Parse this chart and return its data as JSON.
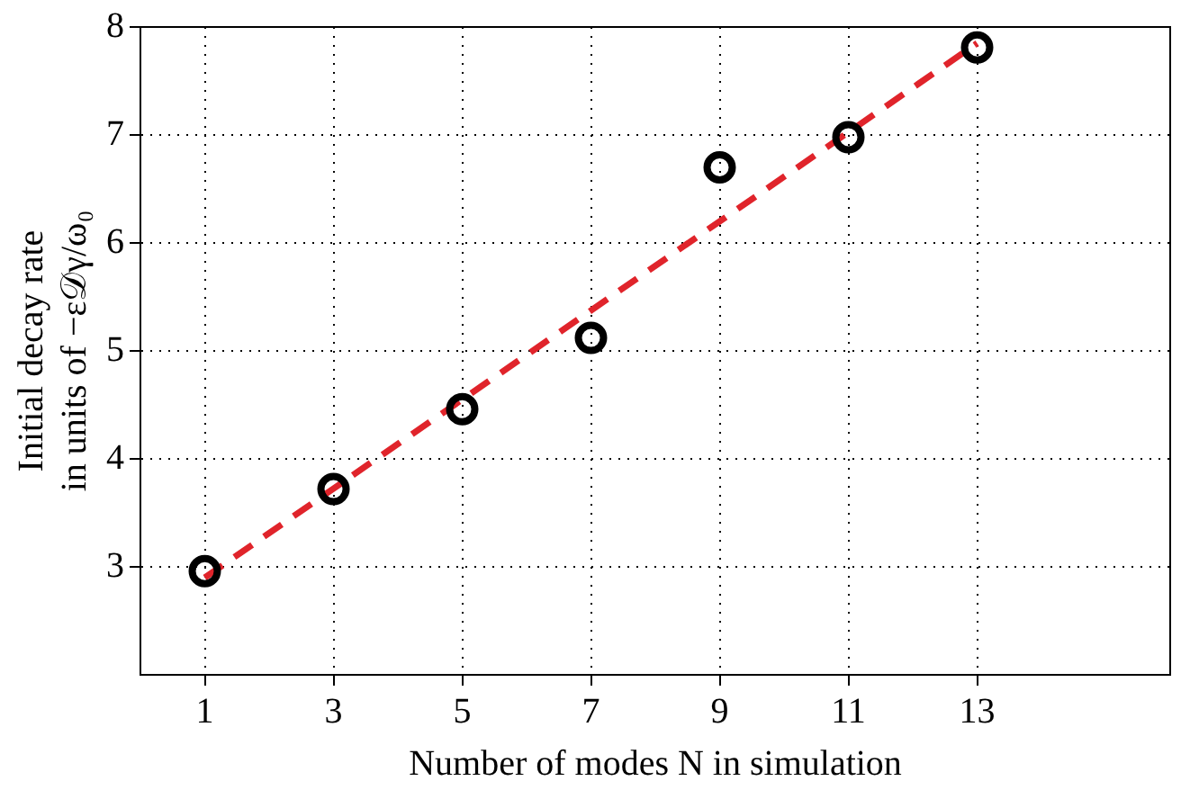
{
  "chart_data": {
    "type": "scatter",
    "xlabel": "Number of modes N in simulation",
    "ylabel": "Initial decay rate\nin units of −ε𝒟γ/ω₀",
    "xlim": [
      0,
      16
    ],
    "xticks": [
      1,
      3,
      5,
      7,
      9,
      11,
      13
    ],
    "ylim": [
      2,
      8
    ],
    "yticks": [
      3,
      4,
      5,
      6,
      7,
      8
    ],
    "grid": true,
    "marker": "circle",
    "series": [
      {
        "type": "scatter",
        "color": "#000000",
        "x": [
          1,
          3,
          5,
          7,
          9,
          11,
          13
        ],
        "values": [
          2.96,
          3.72,
          4.46,
          5.12,
          6.7,
          6.98,
          7.81
        ]
      },
      {
        "type": "line",
        "color": "#e0242b",
        "line_style": "dashed",
        "marker": "none",
        "x": [
          1,
          13
        ],
        "values": [
          2.9,
          7.85
        ]
      }
    ]
  }
}
